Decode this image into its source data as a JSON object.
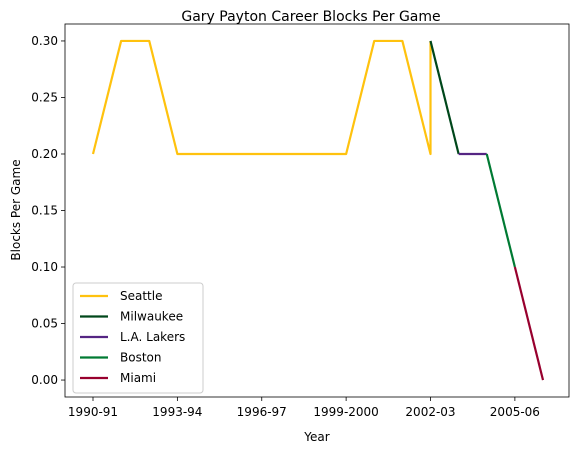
{
  "chart_data": {
    "type": "line",
    "title": "Gary Payton Career Blocks Per Game",
    "xlabel": "Year",
    "ylabel": "Blocks Per Game",
    "x_categories": [
      "1990-91",
      "1991-92",
      "1992-93",
      "1993-94",
      "1994-95",
      "1995-96",
      "1996-97",
      "1997-98",
      "1998-99",
      "1999-2000",
      "2000-01",
      "2001-02",
      "2002-03",
      "2003-04",
      "2004-05",
      "2005-06",
      "2006-07"
    ],
    "x_tick_labels": [
      "1990-91",
      "1993-94",
      "1996-97",
      "1999-2000",
      "2002-03",
      "2005-06"
    ],
    "y_ticks": [
      "0.00",
      "0.05",
      "0.10",
      "0.15",
      "0.20",
      "0.25",
      "0.30"
    ],
    "ylim": [
      -0.015,
      0.315
    ],
    "grid": false,
    "legend_position": "lower-left",
    "series": [
      {
        "name": "Seattle",
        "color": "#FFC20E",
        "x": [
          "1990-91",
          "1991-92",
          "1992-93",
          "1993-94",
          "1994-95",
          "1995-96",
          "1996-97",
          "1997-98",
          "1998-99",
          "1999-2000",
          "2000-01",
          "2001-02",
          "2002-03",
          "2002-03"
        ],
        "values": [
          0.2,
          0.3,
          0.3,
          0.2,
          0.2,
          0.2,
          0.2,
          0.2,
          0.2,
          0.2,
          0.3,
          0.3,
          0.2,
          0.3
        ]
      },
      {
        "name": "Milwaukee",
        "color": "#00471B",
        "x": [
          "2002-03",
          "2003-04"
        ],
        "values": [
          0.3,
          0.2
        ]
      },
      {
        "name": "L.A. Lakers",
        "color": "#552583",
        "x": [
          "2003-04",
          "2004-05"
        ],
        "values": [
          0.2,
          0.2
        ]
      },
      {
        "name": "Boston",
        "color": "#007A33",
        "x": [
          "2004-05",
          "2005-06"
        ],
        "values": [
          0.2,
          0.1
        ]
      },
      {
        "name": "Miami",
        "color": "#98002E",
        "x": [
          "2005-06",
          "2006-07"
        ],
        "values": [
          0.1,
          0.0
        ]
      }
    ]
  }
}
